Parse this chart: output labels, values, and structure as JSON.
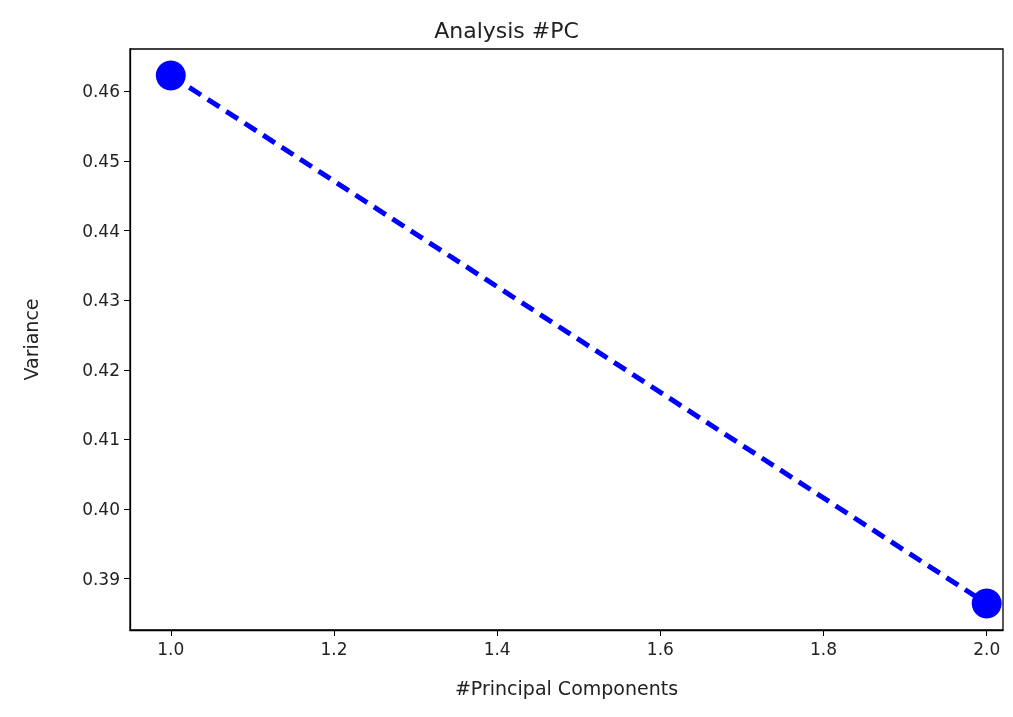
{
  "chart_data": {
    "type": "line",
    "title": "Analysis #PC",
    "xlabel": "#Principal Components",
    "ylabel": "Variance",
    "x": [
      1.0,
      2.0
    ],
    "series": [
      {
        "color": "#0000ff",
        "values": [
          0.4623,
          0.3864
        ]
      }
    ],
    "xlim": [
      0.95,
      2.02
    ],
    "xticks": [
      {
        "value": 1.0,
        "label": "1.0"
      },
      {
        "value": 1.2,
        "label": "1.2"
      },
      {
        "value": 1.4,
        "label": "1.4"
      },
      {
        "value": 1.6,
        "label": "1.6"
      },
      {
        "value": 1.8,
        "label": "1.8"
      },
      {
        "value": 2.0,
        "label": "2.0"
      }
    ],
    "ylim": [
      0.3826,
      0.4661
    ],
    "yticks": [
      {
        "value": 0.39,
        "label": "0.39"
      },
      {
        "value": 0.4,
        "label": "0.40"
      },
      {
        "value": 0.41,
        "label": "0.41"
      },
      {
        "value": 0.42,
        "label": "0.42"
      },
      {
        "value": 0.43,
        "label": "0.43"
      },
      {
        "value": 0.44,
        "label": "0.44"
      },
      {
        "value": 0.45,
        "label": "0.45"
      },
      {
        "value": 0.46,
        "label": "0.46"
      }
    ],
    "marker": "circle",
    "line_style": "dashed",
    "grid": false
  }
}
